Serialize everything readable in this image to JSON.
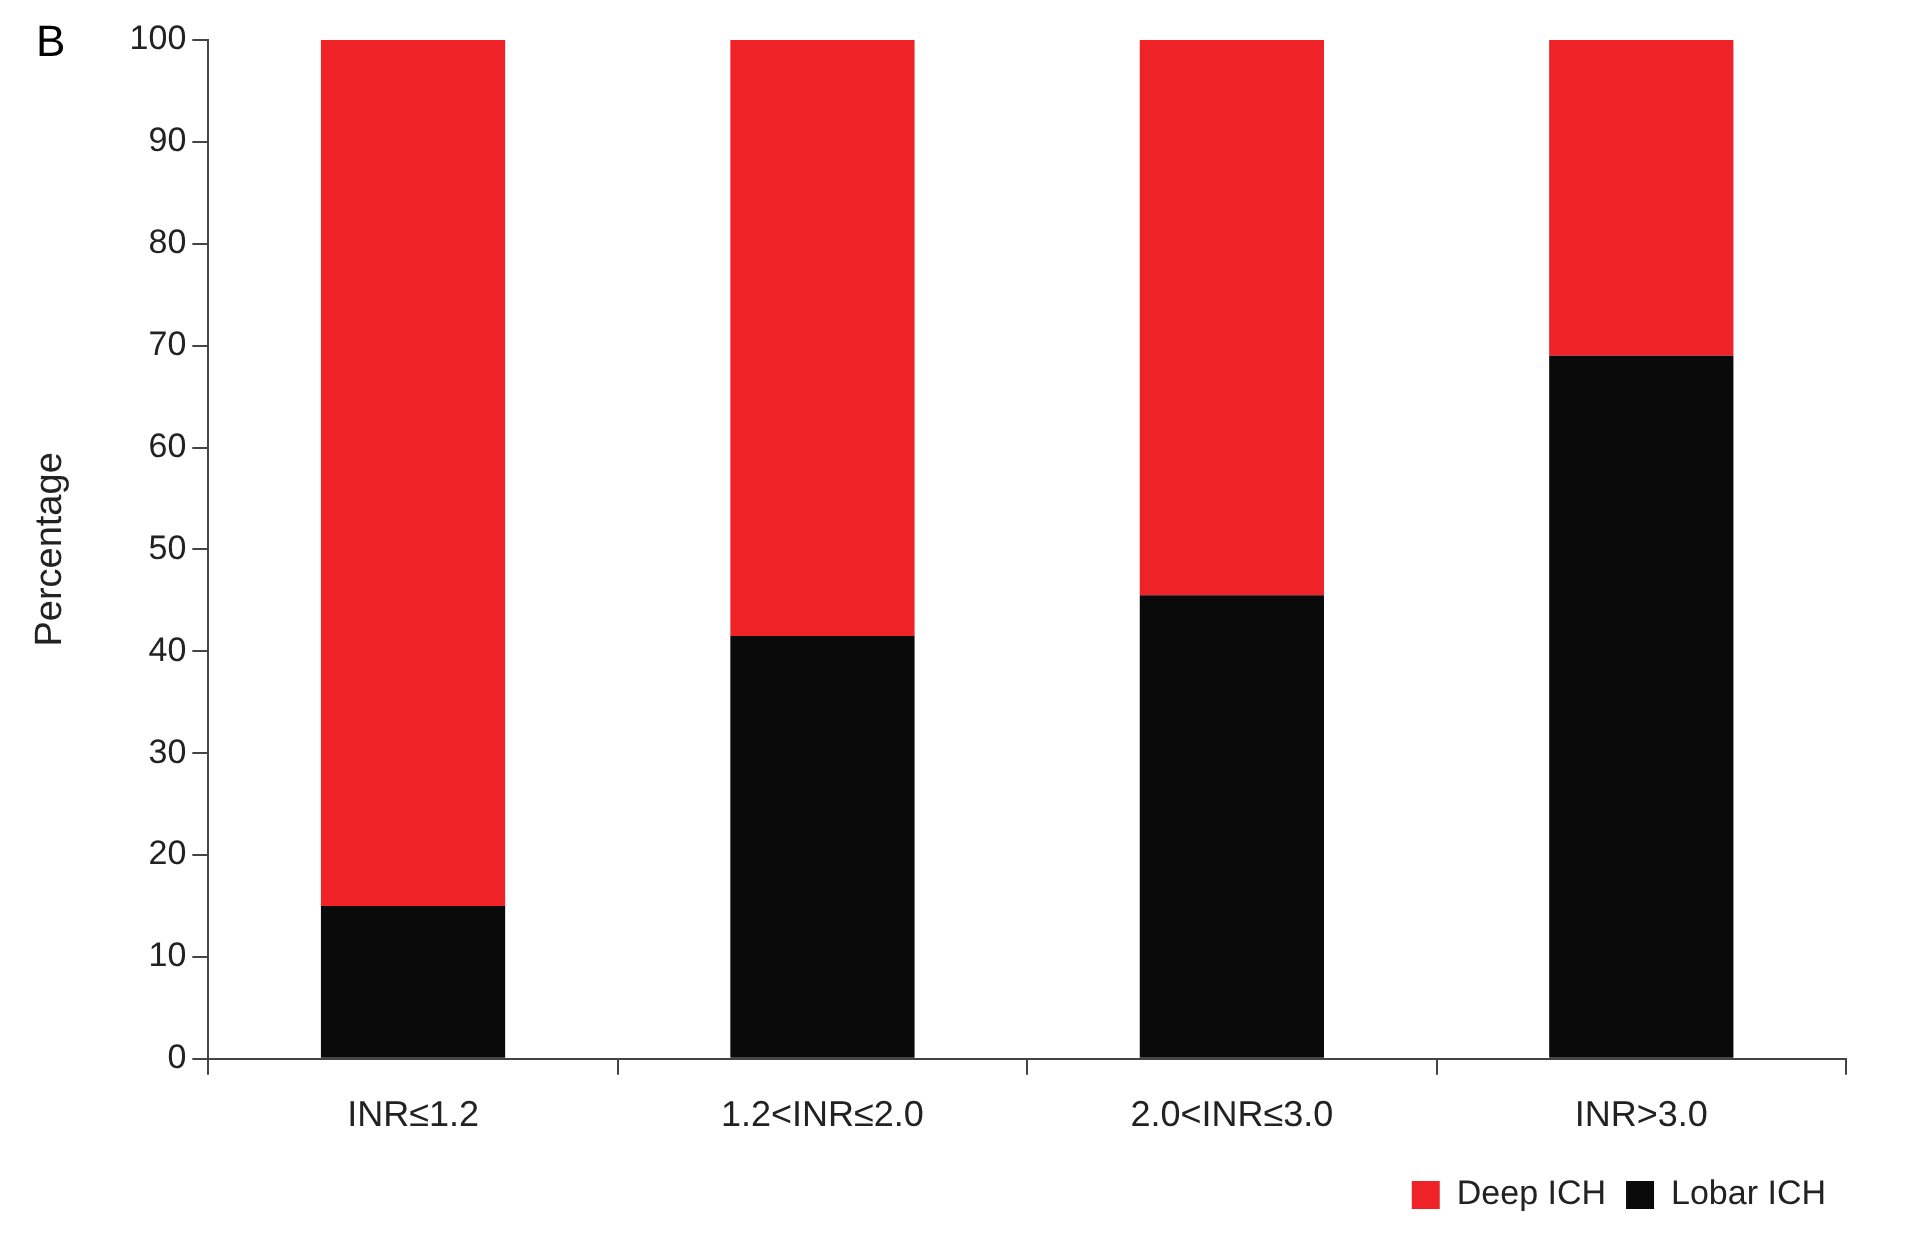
{
  "chart_data": {
    "type": "bar",
    "stacked": true,
    "ylabel": "Percentage",
    "annotations": [
      "B"
    ],
    "categories": [
      "INR≤1.2",
      "1.2<INR≤2.0",
      "2.0<INR≤3.0",
      "INR>3.0"
    ],
    "series": [
      {
        "name": "Lobar ICH",
        "color": "#0a0a0a",
        "values": [
          15,
          41.5,
          45.5,
          69
        ]
      },
      {
        "name": "Deep ICH",
        "color": "#ee2227",
        "values": [
          85,
          58.5,
          54.5,
          31
        ]
      }
    ],
    "ylim": [
      0,
      100
    ],
    "yticks": [
      0,
      10,
      20,
      30,
      40,
      50,
      60,
      70,
      80,
      90,
      100
    ],
    "grid": false,
    "legend": "bottom right"
  }
}
